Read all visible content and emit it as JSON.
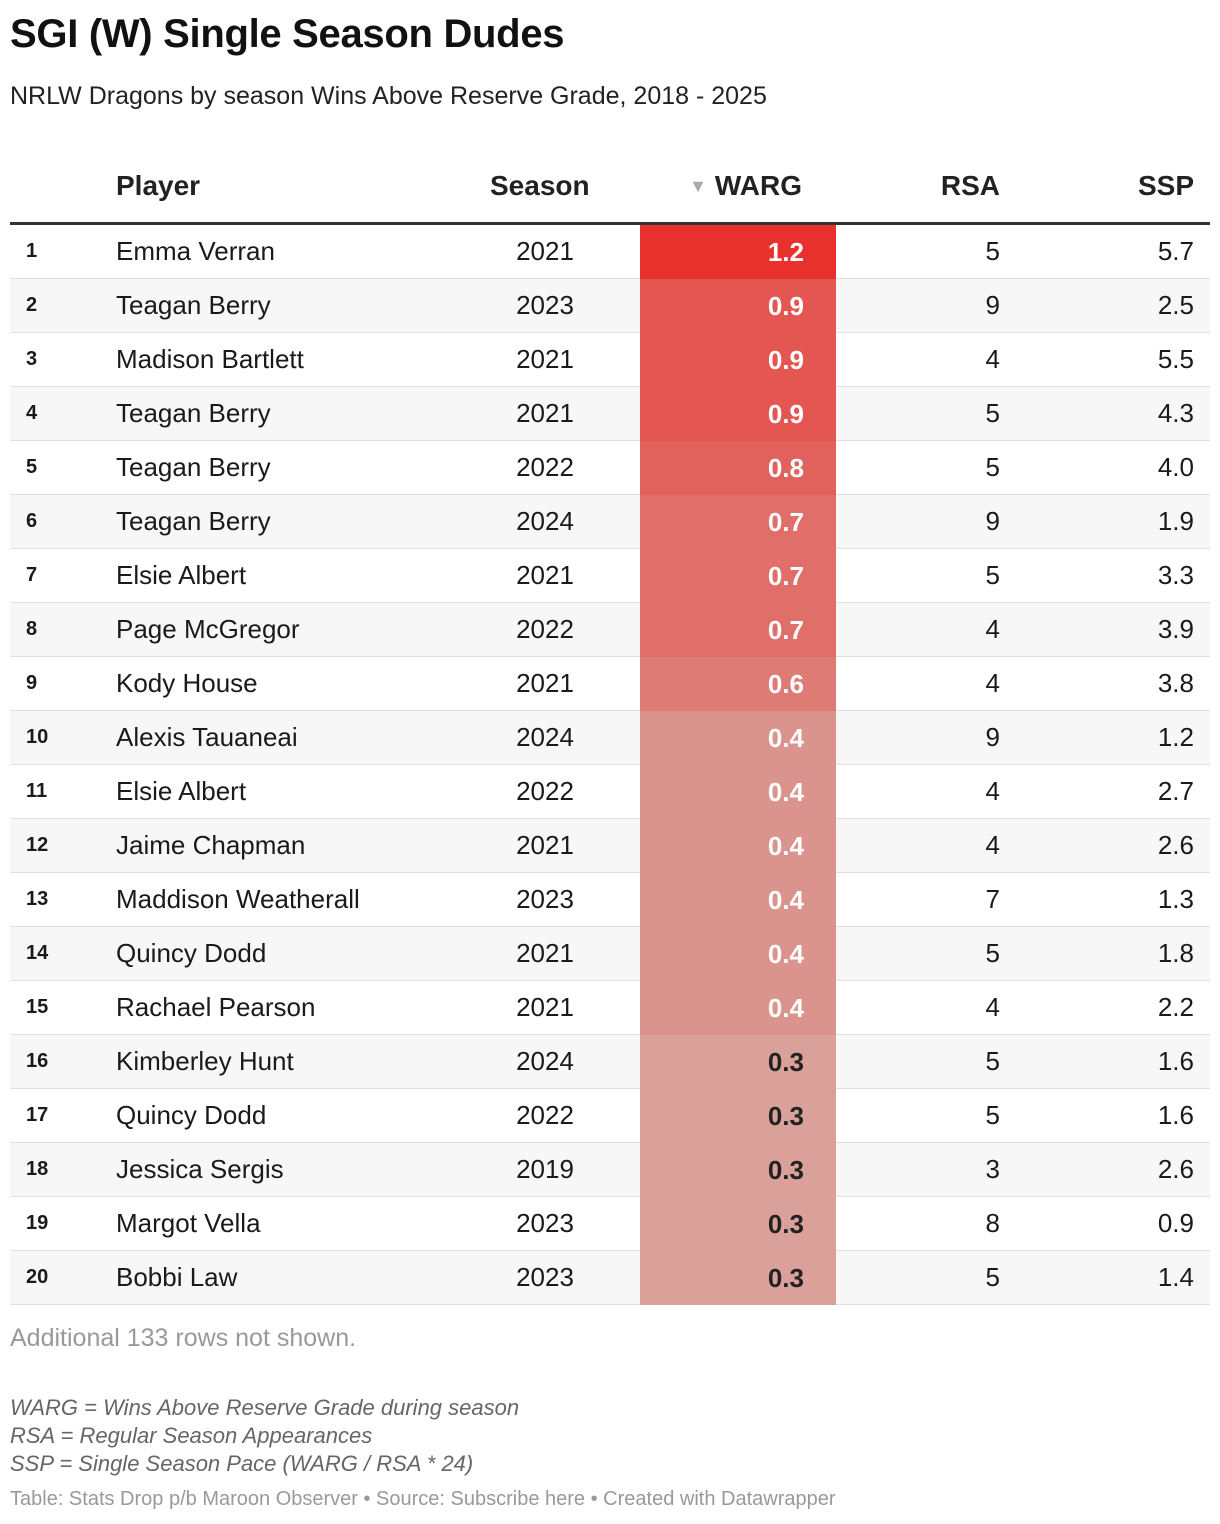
{
  "title": "SGI (W) Single Season Dudes",
  "subtitle": "NRLW Dragons by season Wins Above Reserve Grade, 2018 - 2025",
  "colors": {
    "warg_max": "#e8302d",
    "warg_min": "#d9a199",
    "text_light": "#ffffff",
    "text_dark": "#222222"
  },
  "chart_data": {
    "type": "table",
    "columns": [
      "",
      "Player",
      "Season",
      "WARG",
      "RSA",
      "SSP"
    ],
    "sort": {
      "column": "WARG",
      "direction": "descending",
      "icon": "sort-down-triangle"
    },
    "rows": [
      {
        "rank": "1",
        "player": "Emma Verran",
        "season": "2021",
        "warg": 1.2,
        "warg_label": "1.2",
        "rsa": "5",
        "ssp": "5.7"
      },
      {
        "rank": "2",
        "player": "Teagan Berry",
        "season": "2023",
        "warg": 0.9,
        "warg_label": "0.9",
        "rsa": "9",
        "ssp": "2.5"
      },
      {
        "rank": "3",
        "player": "Madison Bartlett",
        "season": "2021",
        "warg": 0.9,
        "warg_label": "0.9",
        "rsa": "4",
        "ssp": "5.5"
      },
      {
        "rank": "4",
        "player": "Teagan Berry",
        "season": "2021",
        "warg": 0.9,
        "warg_label": "0.9",
        "rsa": "5",
        "ssp": "4.3"
      },
      {
        "rank": "5",
        "player": "Teagan Berry",
        "season": "2022",
        "warg": 0.8,
        "warg_label": "0.8",
        "rsa": "5",
        "ssp": "4.0"
      },
      {
        "rank": "6",
        "player": "Teagan Berry",
        "season": "2024",
        "warg": 0.7,
        "warg_label": "0.7",
        "rsa": "9",
        "ssp": "1.9"
      },
      {
        "rank": "7",
        "player": "Elsie Albert",
        "season": "2021",
        "warg": 0.7,
        "warg_label": "0.7",
        "rsa": "5",
        "ssp": "3.3"
      },
      {
        "rank": "8",
        "player": "Page McGregor",
        "season": "2022",
        "warg": 0.7,
        "warg_label": "0.7",
        "rsa": "4",
        "ssp": "3.9"
      },
      {
        "rank": "9",
        "player": "Kody House",
        "season": "2021",
        "warg": 0.6,
        "warg_label": "0.6",
        "rsa": "4",
        "ssp": "3.8"
      },
      {
        "rank": "10",
        "player": "Alexis Tauaneai",
        "season": "2024",
        "warg": 0.4,
        "warg_label": "0.4",
        "rsa": "9",
        "ssp": "1.2"
      },
      {
        "rank": "11",
        "player": "Elsie Albert",
        "season": "2022",
        "warg": 0.4,
        "warg_label": "0.4",
        "rsa": "4",
        "ssp": "2.7"
      },
      {
        "rank": "12",
        "player": "Jaime Chapman",
        "season": "2021",
        "warg": 0.4,
        "warg_label": "0.4",
        "rsa": "4",
        "ssp": "2.6"
      },
      {
        "rank": "13",
        "player": "Maddison Weatherall",
        "season": "2023",
        "warg": 0.4,
        "warg_label": "0.4",
        "rsa": "7",
        "ssp": "1.3"
      },
      {
        "rank": "14",
        "player": "Quincy Dodd",
        "season": "2021",
        "warg": 0.4,
        "warg_label": "0.4",
        "rsa": "5",
        "ssp": "1.8"
      },
      {
        "rank": "15",
        "player": "Rachael Pearson",
        "season": "2021",
        "warg": 0.4,
        "warg_label": "0.4",
        "rsa": "4",
        "ssp": "2.2"
      },
      {
        "rank": "16",
        "player": "Kimberley Hunt",
        "season": "2024",
        "warg": 0.3,
        "warg_label": "0.3",
        "rsa": "5",
        "ssp": "1.6"
      },
      {
        "rank": "17",
        "player": "Quincy Dodd",
        "season": "2022",
        "warg": 0.3,
        "warg_label": "0.3",
        "rsa": "5",
        "ssp": "1.6"
      },
      {
        "rank": "18",
        "player": "Jessica Sergis",
        "season": "2019",
        "warg": 0.3,
        "warg_label": "0.3",
        "rsa": "3",
        "ssp": "2.6"
      },
      {
        "rank": "19",
        "player": "Margot Vella",
        "season": "2023",
        "warg": 0.3,
        "warg_label": "0.3",
        "rsa": "8",
        "ssp": "0.9"
      },
      {
        "rank": "20",
        "player": "Bobbi Law",
        "season": "2023",
        "warg": 0.3,
        "warg_label": "0.3",
        "rsa": "5",
        "ssp": "1.4"
      }
    ]
  },
  "more_rows_text": "Additional 133 rows not shown.",
  "notes": [
    "WARG = Wins Above Reserve Grade during season",
    "RSA = Regular Season Appearances",
    "SSP = Single Season Pace (WARG / RSA * 24)"
  ],
  "footer": "Table: Stats Drop p/b Maroon Observer • Source: Subscribe here • Created with Datawrapper"
}
